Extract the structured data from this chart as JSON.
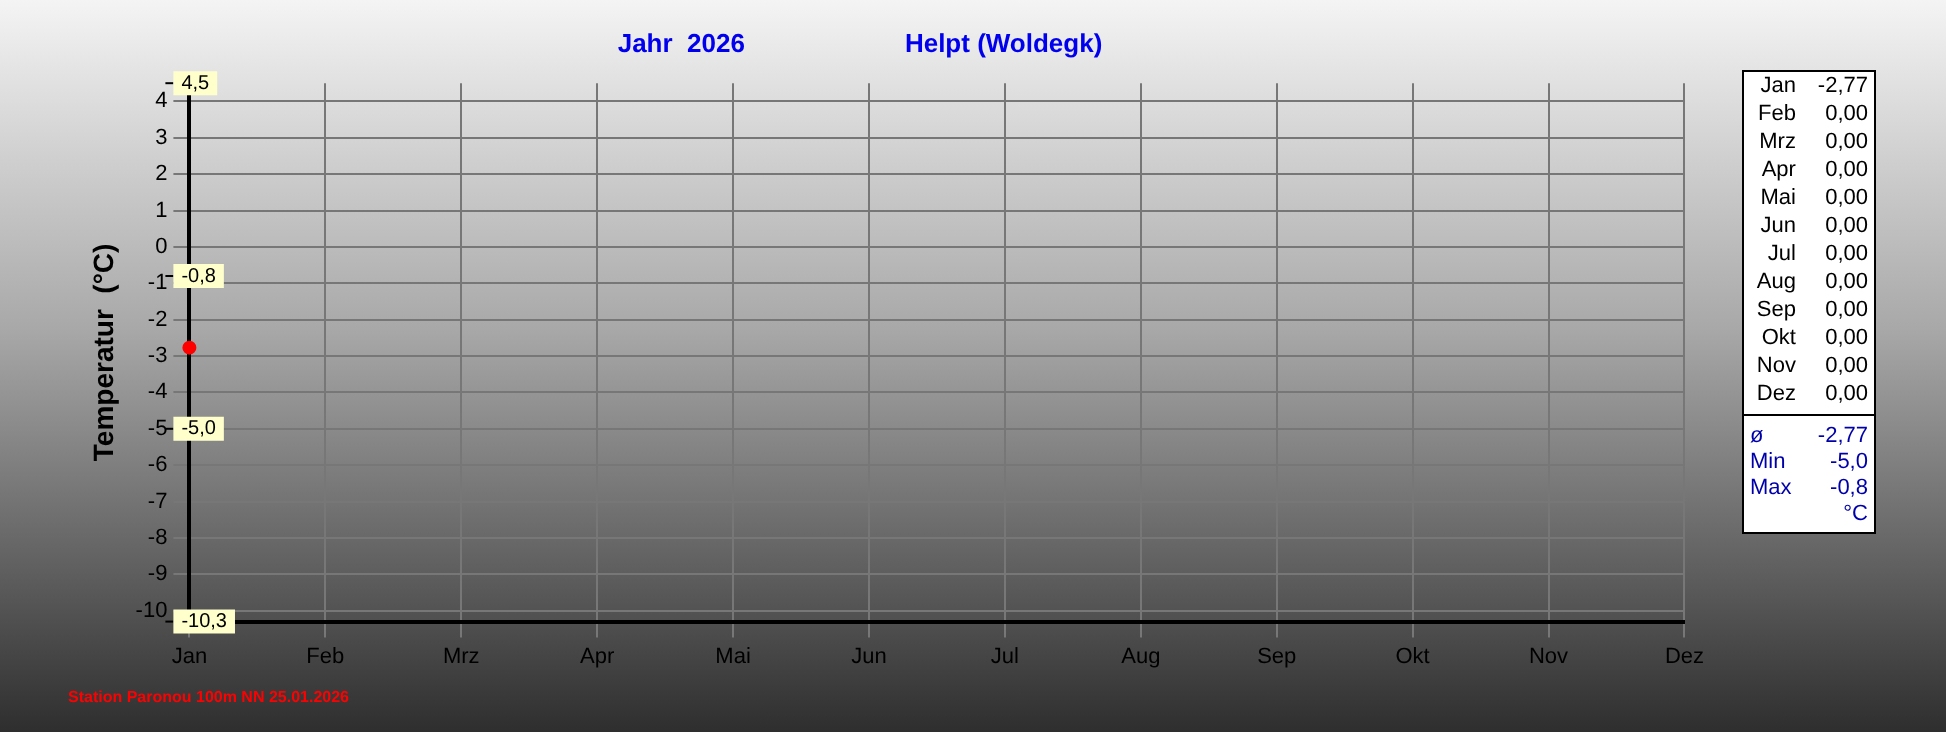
{
  "chart_data": {
    "type": "line",
    "title": "Jahr  2026",
    "subtitle": "Helpt (Woldegk)",
    "ylabel": "Temperatur  (°C)",
    "categories": [
      "Jan",
      "Feb",
      "Mrz",
      "Apr",
      "Mai",
      "Jun",
      "Jul",
      "Aug",
      "Sep",
      "Okt",
      "Nov",
      "Dez"
    ],
    "values": [
      -2.77,
      null,
      null,
      null,
      null,
      null,
      null,
      null,
      null,
      null,
      null,
      null
    ],
    "y2_categories": [
      "-2,77",
      "0,00",
      "0,00",
      "0,00",
      "0,00",
      "0,00",
      "0,00",
      "0,00",
      "0,00",
      "0,00",
      "0,00",
      "0,00"
    ],
    "color": "#ff0000",
    "ylim": [
      -10.3,
      4.5
    ],
    "yticks": [
      -10,
      -9,
      -8,
      -7,
      -6,
      -5,
      -4,
      -3,
      -2,
      -1,
      0,
      1,
      2,
      3,
      4
    ],
    "ref_lines": [
      {
        "axis": "y",
        "value": 4.5,
        "label": "4,5"
      },
      {
        "axis": "y",
        "value": -0.8,
        "label": "-0,8"
      },
      {
        "axis": "y",
        "value": -5.0,
        "label": "-5,0"
      },
      {
        "axis": "y",
        "value": -10.3,
        "label": "-10,3"
      }
    ],
    "grid": true,
    "legend": false,
    "marker": "circle",
    "annotations": [
      "ø",
      "-2,77",
      "Min",
      "-5,0",
      "Max",
      "-0,8",
      "°C",
      "Station Paronou 100m NN 25.01.2026"
    ]
  }
}
